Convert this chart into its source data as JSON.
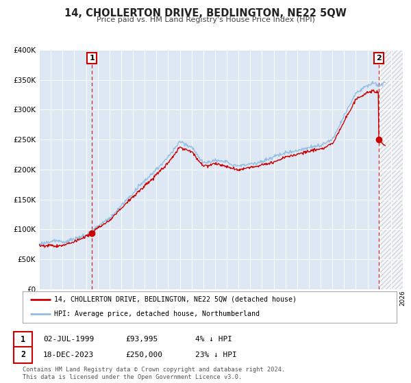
{
  "title": "14, CHOLLERTON DRIVE, BEDLINGTON, NE22 5QW",
  "subtitle": "Price paid vs. HM Land Registry's House Price Index (HPI)",
  "legend_line1": "14, CHOLLERTON DRIVE, BEDLINGTON, NE22 5QW (detached house)",
  "legend_line2": "HPI: Average price, detached house, Northumberland",
  "purchase1_date": "02-JUL-1999",
  "purchase1_price": 93995,
  "purchase1_hpi_text": "4% ↓ HPI",
  "purchase1_year": 1999.5,
  "purchase2_date": "18-DEC-2023",
  "purchase2_price": 250000,
  "purchase2_hpi_text": "23% ↓ HPI",
  "purchase2_year": 2023.96,
  "hpi_color": "#90bce0",
  "price_color": "#cc0000",
  "plot_bg": "#dde8f4",
  "grid_color": "#ffffff",
  "footer": "Contains HM Land Registry data © Crown copyright and database right 2024.\nThis data is licensed under the Open Government Licence v3.0.",
  "xmin": 1995,
  "xmax": 2026,
  "ymin": 0,
  "ymax": 400000
}
